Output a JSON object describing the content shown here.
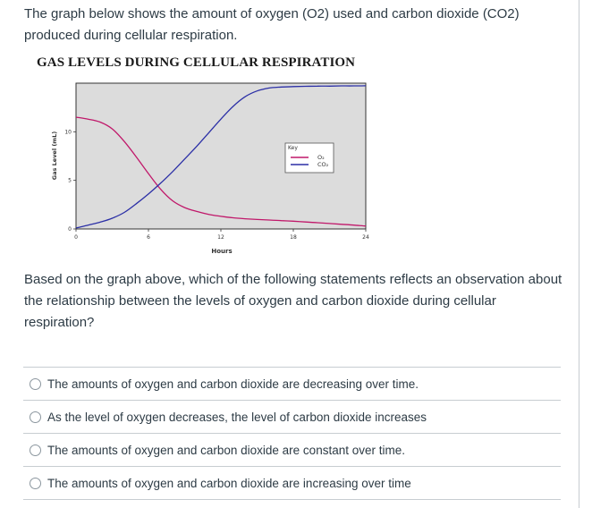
{
  "question": {
    "intro": "The graph below shows the amount of oxygen (O2) used and carbon dioxide (CO2) produced during cellular respiration.",
    "prompt": "Based on the graph above, which of the following statements  reflects an observation about the relationship between the levels of oxygen and carbon dioxide during cellular respiration?",
    "answers": [
      "The amounts of oxygen and carbon dioxide are decreasing over time.",
      "As the level of oxygen decreases, the level of carbon dioxide increases",
      "The amounts of oxygen and carbon dioxide are constant over time.",
      "The amounts of oxygen and carbon dioxide are increasing over time"
    ]
  },
  "chart_data": {
    "type": "line",
    "title": "GAS LEVELS DURING CELLULAR RESPIRATION",
    "xlabel": "Hours",
    "ylabel": "Gas Level (mL)",
    "xlim": [
      0,
      24
    ],
    "ylim": [
      0,
      15
    ],
    "xticks": [
      0,
      6,
      12,
      18,
      24
    ],
    "yticks": [
      0,
      5,
      10
    ],
    "grid": false,
    "legend_title": "Key",
    "legend_position": "inside-right",
    "series": [
      {
        "name": "O₂",
        "color": "#c0186a",
        "x": [
          0,
          1,
          2,
          3,
          4,
          5,
          6,
          7,
          8,
          9,
          10,
          11,
          12,
          13,
          14,
          15,
          16,
          17,
          18,
          19,
          20,
          21,
          22,
          23,
          24
        ],
        "y": [
          11.5,
          11.3,
          11.0,
          10.3,
          9.0,
          7.4,
          5.7,
          4.1,
          2.9,
          2.2,
          1.8,
          1.5,
          1.3,
          1.15,
          1.05,
          0.98,
          0.92,
          0.86,
          0.8,
          0.72,
          0.64,
          0.56,
          0.48,
          0.4,
          0.3
        ]
      },
      {
        "name": "CO₂",
        "color": "#2b2fa6",
        "x": [
          0,
          1,
          2,
          3,
          4,
          5,
          6,
          7,
          8,
          9,
          10,
          11,
          12,
          13,
          14,
          15,
          16,
          17,
          18,
          19,
          20,
          21,
          22,
          23,
          24
        ],
        "y": [
          0.1,
          0.4,
          0.7,
          1.1,
          1.7,
          2.6,
          3.6,
          4.7,
          5.9,
          7.2,
          8.5,
          9.9,
          11.3,
          12.6,
          13.6,
          14.2,
          14.5,
          14.6,
          14.65,
          14.68,
          14.7,
          14.7,
          14.72,
          14.72,
          14.73
        ]
      }
    ]
  }
}
